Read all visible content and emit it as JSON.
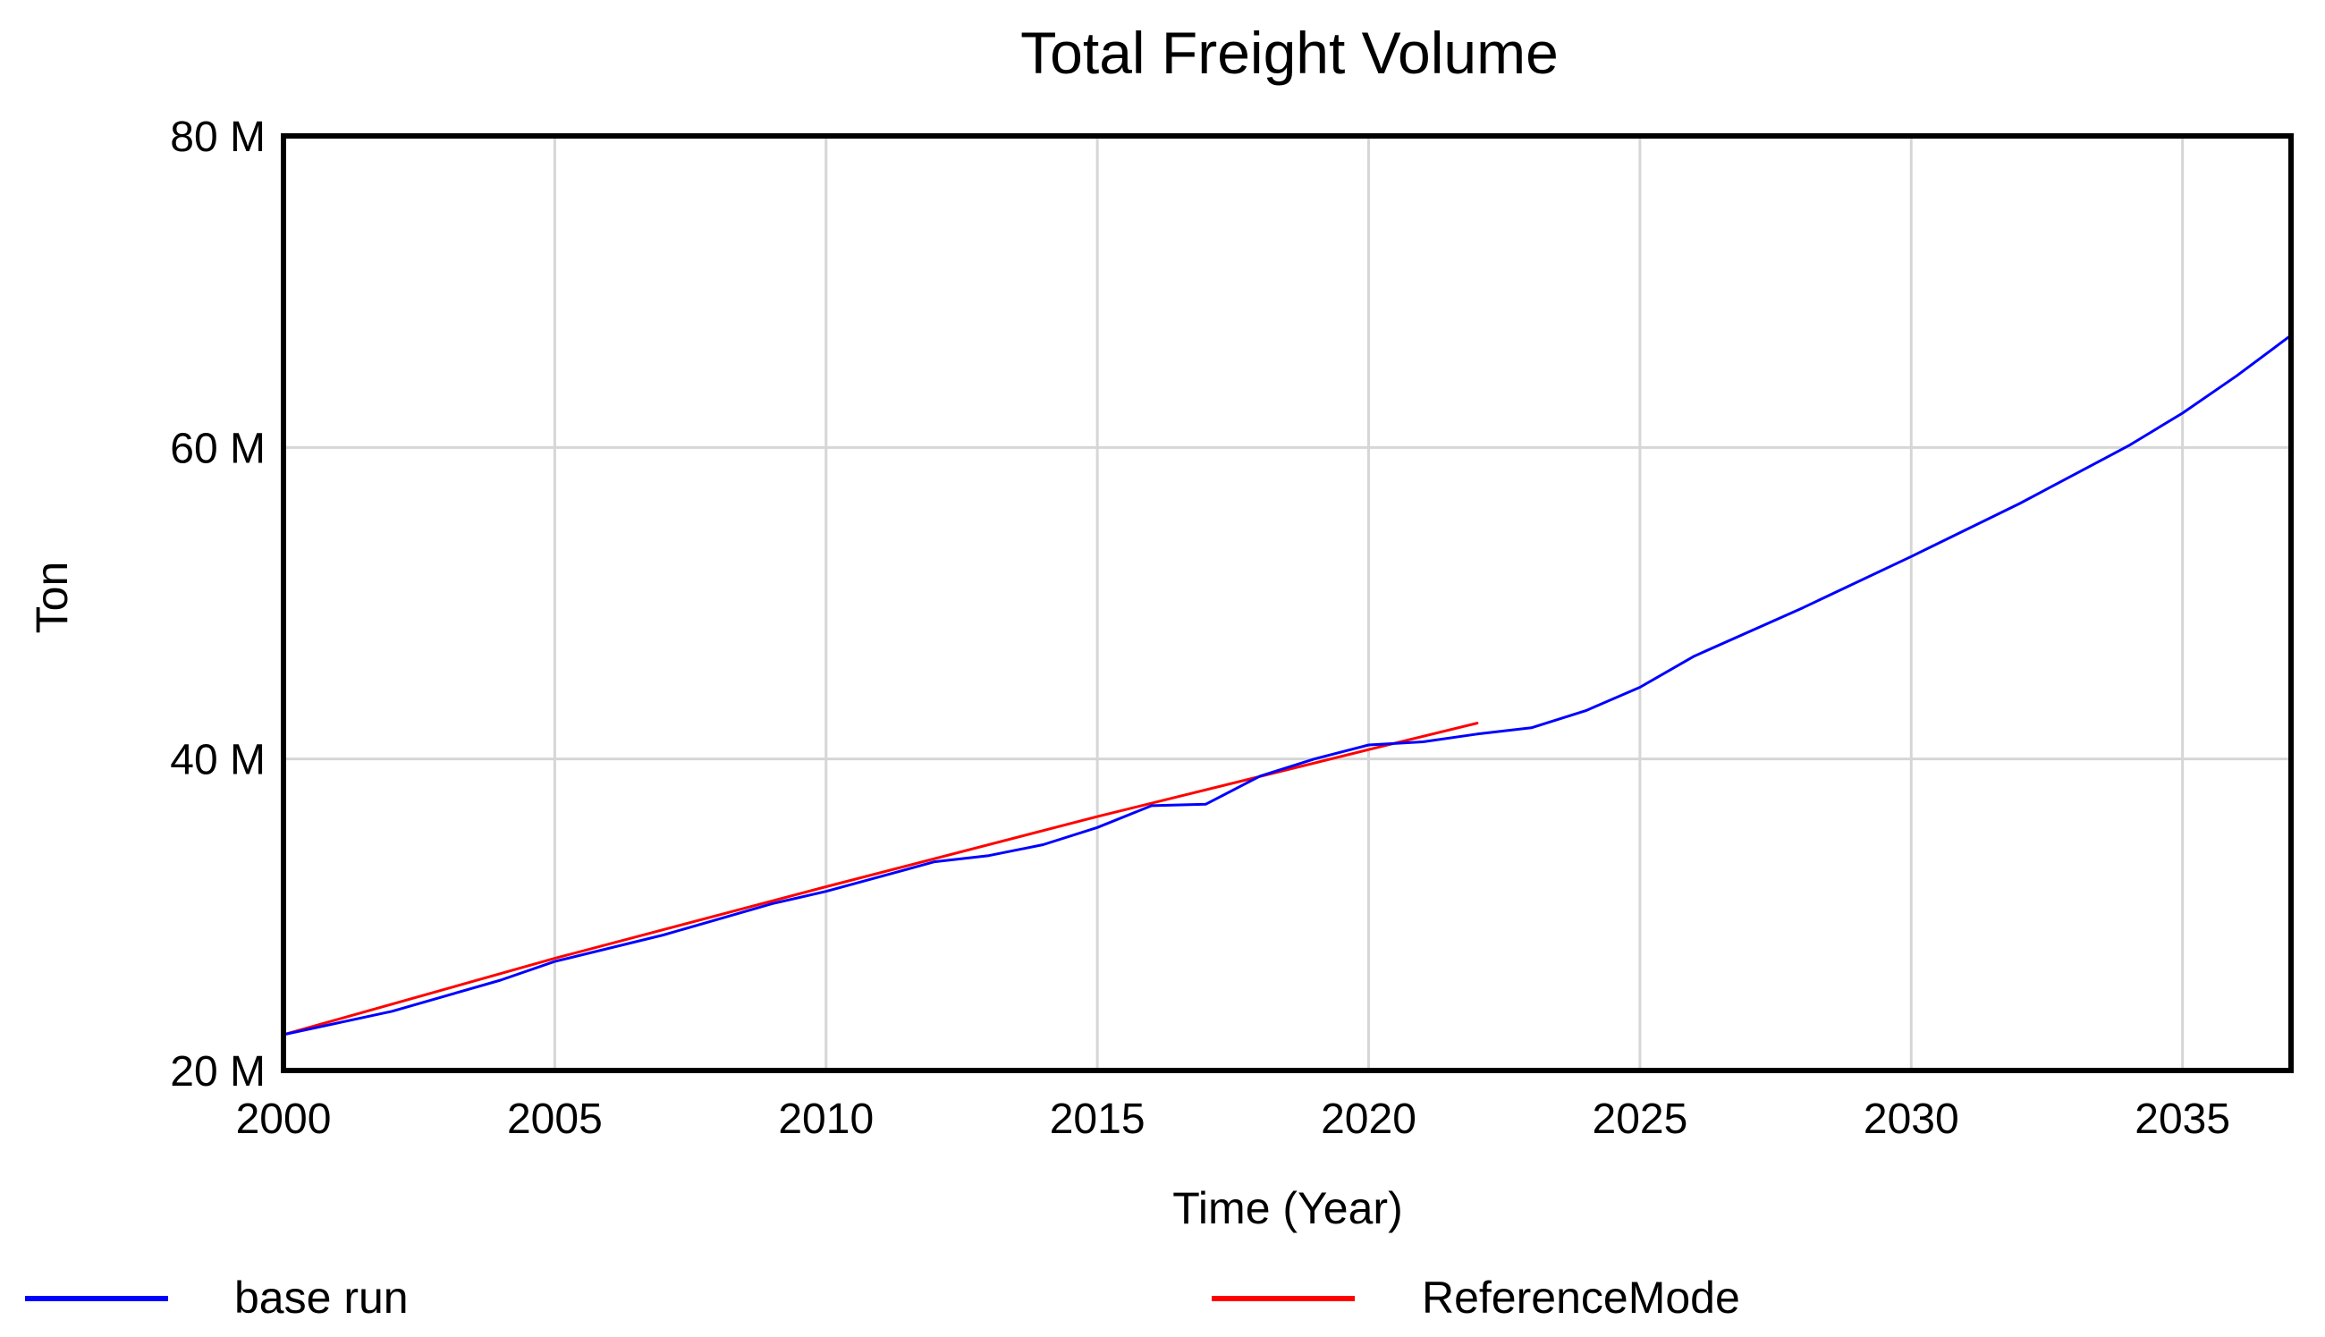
{
  "chart_data": {
    "type": "line",
    "title": "Total Freight Volume",
    "xlabel": "Time (Year)",
    "ylabel": "Ton",
    "xlim": [
      2000,
      2037
    ],
    "ylim": [
      20,
      80
    ],
    "x_ticks": [
      2000,
      2005,
      2010,
      2015,
      2020,
      2025,
      2030,
      2035
    ],
    "x_tick_labels": [
      "2000",
      "2005",
      "2010",
      "2015",
      "2020",
      "2025",
      "2030",
      "2035"
    ],
    "y_ticks": [
      20,
      40,
      60,
      80
    ],
    "y_tick_labels": [
      "20 M",
      "40 M",
      "60 M",
      "80 M"
    ],
    "y_unit": "M",
    "grid": true,
    "legend_position": "bottom",
    "series": [
      {
        "name": "base run",
        "color": "#0000ff",
        "x": [
          2000,
          2002,
          2004,
          2005,
          2007,
          2009,
          2010,
          2012,
          2013,
          2014,
          2015,
          2016,
          2017,
          2018,
          2019,
          2020,
          2021,
          2022,
          2023,
          2024,
          2025,
          2026,
          2028,
          2030,
          2032,
          2034,
          2035,
          2036,
          2037
        ],
        "values": [
          22.3,
          23.8,
          25.8,
          27.0,
          28.7,
          30.7,
          31.5,
          33.4,
          33.8,
          34.5,
          35.6,
          37.0,
          37.1,
          38.9,
          40.0,
          40.9,
          41.1,
          41.6,
          42.0,
          43.1,
          44.6,
          46.6,
          49.7,
          53.0,
          56.4,
          60.1,
          62.2,
          64.6,
          67.2
        ]
      },
      {
        "name": "ReferenceMode",
        "color": "#ff0000",
        "x": [
          2000,
          2005,
          2010,
          2015,
          2020,
          2022
        ],
        "values": [
          22.3,
          27.2,
          31.8,
          36.3,
          40.6,
          42.3
        ]
      }
    ]
  }
}
